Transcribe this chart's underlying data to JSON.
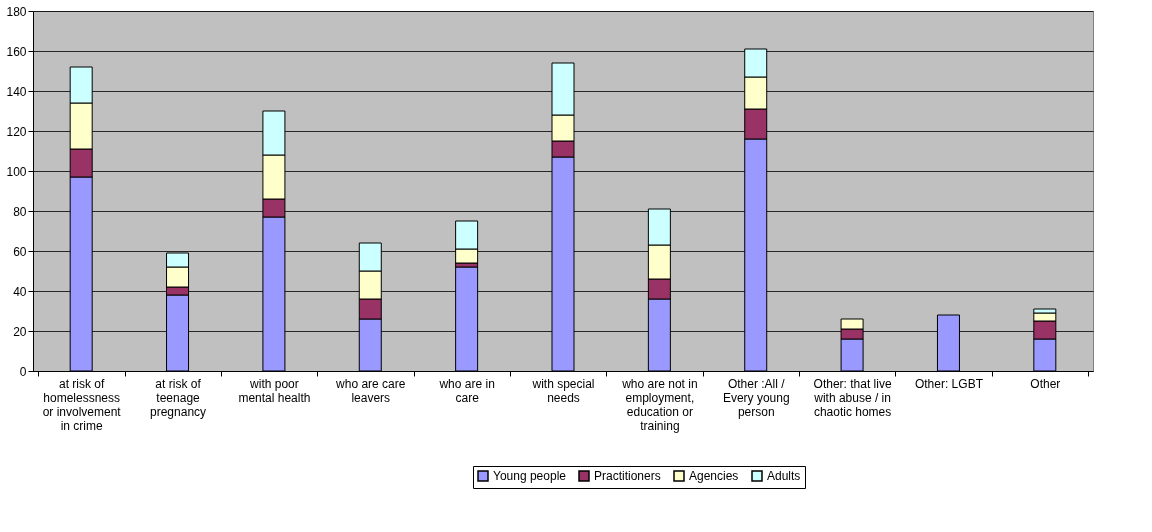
{
  "chart_data": {
    "type": "bar",
    "stacked": true,
    "categories": [
      "at risk of\nhomelessness\nor involvement\nin crime",
      "at risk of\nteenage\npregnancy",
      "with poor\nmental health",
      "who are care\nleavers",
      "who are in\ncare",
      "with special\nneeds",
      "who are not in\nemployment,\neducation or\ntraining",
      "Other :All /\nEvery young\nperson",
      "Other: that live\nwith abuse / in\nchaotic homes",
      "Other: LGBT",
      "Other"
    ],
    "series": [
      {
        "name": "Young people",
        "color": "#9999ff",
        "values": [
          97,
          38,
          77,
          26,
          52,
          107,
          36,
          116,
          16,
          28,
          16
        ]
      },
      {
        "name": "Practitioners",
        "color": "#993366",
        "values": [
          14,
          4,
          9,
          10,
          2,
          8,
          10,
          15,
          5,
          0,
          9
        ]
      },
      {
        "name": "Agencies",
        "color": "#ffffcc",
        "values": [
          23,
          10,
          22,
          14,
          7,
          13,
          17,
          16,
          5,
          0,
          4
        ]
      },
      {
        "name": "Adults",
        "color": "#ccffff",
        "values": [
          18,
          7,
          22,
          14,
          14,
          26,
          18,
          14,
          0,
          0,
          2
        ]
      }
    ],
    "ylim": [
      0,
      180
    ],
    "yticks": [
      0,
      20,
      40,
      60,
      80,
      100,
      120,
      140,
      160,
      180
    ],
    "grid": "y",
    "legend": "bottom"
  }
}
